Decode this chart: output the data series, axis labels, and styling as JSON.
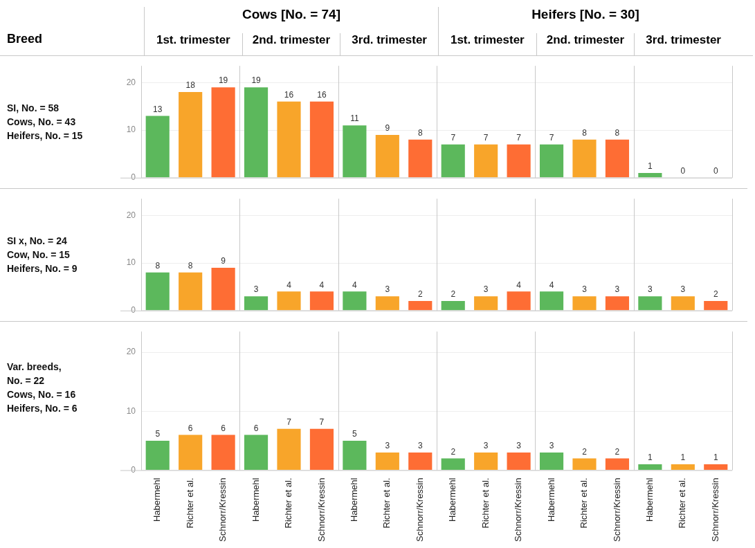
{
  "chart_data": [
    {
      "type": "bar",
      "ylabel": "SI, No. = 58\nCows, No. = 43\nHeifers, No. = 15",
      "annotations": [
        "Breed",
        "Cows [No. = 74]",
        "Heifers [No. = 30]",
        "1st. trimester",
        "2nd. trimester",
        "3rd. trimester",
        "1st. trimester",
        "2nd. trimester",
        "3rd. trimester"
      ],
      "categories": [
        null,
        null,
        null,
        null,
        null,
        null,
        null,
        null,
        null,
        null,
        null,
        null,
        null,
        null,
        null,
        null,
        null,
        null
      ],
      "values": [
        13,
        18,
        19,
        19,
        16,
        16,
        11,
        9,
        8,
        7,
        7,
        7,
        7,
        8,
        8,
        1,
        0,
        0
      ],
      "colors": [
        "#5cb85c",
        "#f8a52a",
        "#fe6d34",
        "#5cb85c",
        "#f8a52a",
        "#fe6d34",
        "#5cb85c",
        "#f8a52a",
        "#fe6d34",
        "#5cb85c",
        "#f8a52a",
        "#fe6d34",
        "#5cb85c",
        "#f8a52a",
        "#fe6d34",
        "#5cb85c",
        "#f8a52a",
        "#fe6d34"
      ],
      "ylim": [
        0,
        23.5
      ],
      "yticks": [
        0,
        10,
        20
      ],
      "grid": "y",
      "data_labels": true,
      "tick_labels": "y"
    },
    {
      "type": "bar",
      "ylabel": "SI x, No. = 24\nCow, No. = 15\nHeifers, No. = 9",
      "categories": [
        null,
        null,
        null,
        null,
        null,
        null,
        null,
        null,
        null,
        null,
        null,
        null,
        null,
        null,
        null,
        null,
        null,
        null
      ],
      "values": [
        8,
        8,
        9,
        3,
        4,
        4,
        4,
        3,
        2,
        2,
        3,
        4,
        4,
        3,
        3,
        3,
        3,
        2
      ],
      "colors": [
        "#5cb85c",
        "#f8a52a",
        "#fe6d34",
        "#5cb85c",
        "#f8a52a",
        "#fe6d34",
        "#5cb85c",
        "#f8a52a",
        "#fe6d34",
        "#5cb85c",
        "#f8a52a",
        "#fe6d34",
        "#5cb85c",
        "#f8a52a",
        "#fe6d34",
        "#5cb85c",
        "#f8a52a",
        "#fe6d34"
      ],
      "ylim": [
        0,
        23.5
      ],
      "yticks": [
        0,
        10,
        20
      ],
      "grid": "y",
      "data_labels": true,
      "tick_labels": "y"
    },
    {
      "type": "bar",
      "ylabel": "Var. breeds,\nNo. = 22\nCows, No. = 16\nHeifers, No. = 6",
      "categories": [
        "Habermehl",
        "Richter et al.",
        "Schnorr/Kressin",
        "Habermehl",
        "Richter et al.",
        "Schnorr/Kressin",
        "Habermehl",
        "Richter et al.",
        "Schnorr/Kressin",
        "Habermehl",
        "Richter et al.",
        "Schnorr/Kressin",
        "Habermehl",
        "Richter et al.",
        "Schnorr/Kressin",
        "Habermehl",
        "Richter et al.",
        "Schnorr/Kressin"
      ],
      "values": [
        5,
        6,
        6,
        6,
        7,
        7,
        5,
        3,
        3,
        2,
        3,
        3,
        3,
        2,
        2,
        1,
        1,
        1
      ],
      "colors": [
        "#5cb85c",
        "#f8a52a",
        "#fe6d34",
        "#5cb85c",
        "#f8a52a",
        "#fe6d34",
        "#5cb85c",
        "#f8a52a",
        "#fe6d34",
        "#5cb85c",
        "#f8a52a",
        "#fe6d34",
        "#5cb85c",
        "#f8a52a",
        "#fe6d34",
        "#5cb85c",
        "#f8a52a",
        "#fe6d34"
      ],
      "ylim": [
        0,
        23.5
      ],
      "yticks": [
        0,
        10,
        20
      ],
      "grid": "y",
      "data_labels": true
    }
  ]
}
